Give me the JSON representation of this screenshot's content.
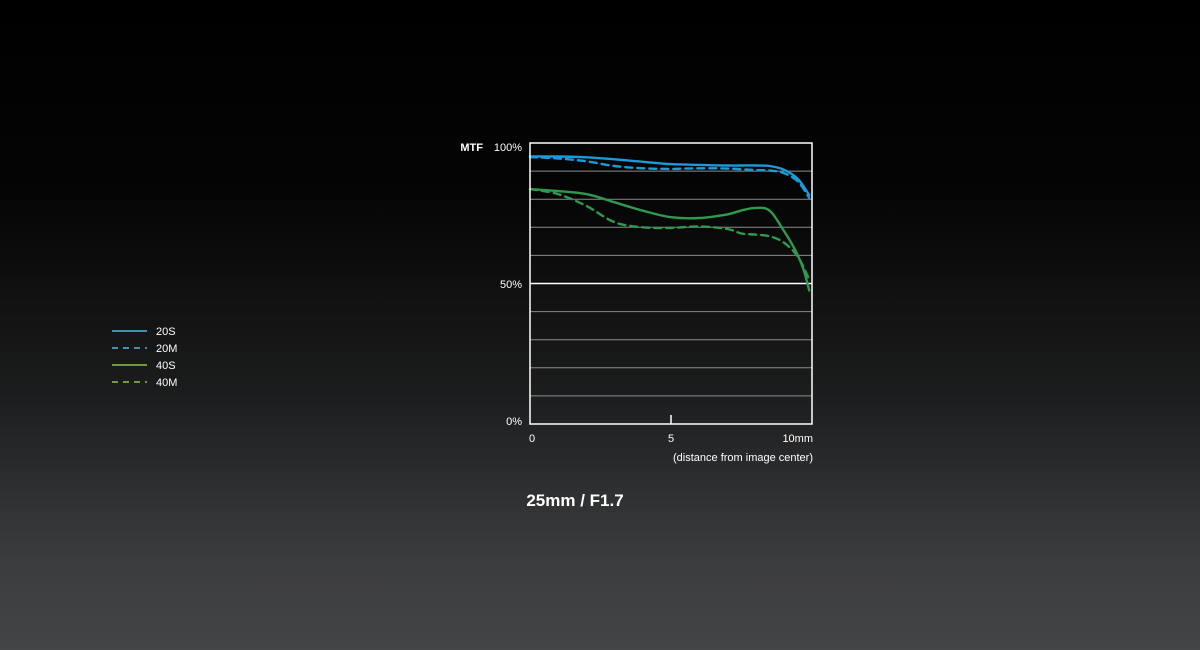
{
  "chart_data": {
    "type": "line",
    "ylabel": "MTF",
    "xlabel": "(distance from image center)",
    "y_ticks": [
      "0%",
      "50%",
      "100%"
    ],
    "x_ticks": [
      "0",
      "5",
      "10mm"
    ],
    "xlim": [
      0,
      10
    ],
    "ylim": [
      0,
      100
    ],
    "grid": true,
    "legend_position": "left",
    "caption": "25mm / F1.7",
    "colors": {
      "blue": "#1a9ad6",
      "green": "#2e9a4e",
      "legend_blue": "#5ab4e6",
      "legend_green": "#8dc63f"
    },
    "legend": [
      {
        "label": "20S",
        "style": "solid",
        "color": "#5ab4e6"
      },
      {
        "label": "20M",
        "style": "dashed",
        "color": "#5ab4e6"
      },
      {
        "label": "40S",
        "style": "solid",
        "color": "#8dc63f"
      },
      {
        "label": "40M",
        "style": "dashed",
        "color": "#8dc63f"
      }
    ],
    "series": [
      {
        "name": "20S",
        "color": "#1a9ad6",
        "dash": false,
        "points": [
          [
            0,
            95.2
          ],
          [
            1,
            95.2
          ],
          [
            2,
            94.9
          ],
          [
            3,
            94.2
          ],
          [
            4,
            93.3
          ],
          [
            5,
            92.5
          ],
          [
            6,
            92.2
          ],
          [
            7,
            92.0
          ],
          [
            7.5,
            92.0
          ],
          [
            8,
            92.0
          ],
          [
            8.5,
            91.8
          ],
          [
            9,
            90.5
          ],
          [
            9.5,
            87.2
          ],
          [
            9.9,
            81.5
          ]
        ]
      },
      {
        "name": "20M",
        "color": "#1a9ad6",
        "dash": true,
        "points": [
          [
            0,
            95.0
          ],
          [
            1,
            94.5
          ],
          [
            2,
            93.5
          ],
          [
            3,
            91.8
          ],
          [
            4,
            91.0
          ],
          [
            5,
            90.8
          ],
          [
            6,
            91.0
          ],
          [
            7,
            90.9
          ],
          [
            8,
            90.4
          ],
          [
            8.5,
            90.2
          ],
          [
            9,
            89.3
          ],
          [
            9.5,
            86.3
          ],
          [
            9.9,
            80.5
          ]
        ]
      },
      {
        "name": "40S",
        "color": "#2e9a4e",
        "dash": false,
        "points": [
          [
            0,
            83.6
          ],
          [
            1,
            82.9
          ],
          [
            2,
            81.8
          ],
          [
            3,
            78.9
          ],
          [
            4,
            75.9
          ],
          [
            5,
            73.6
          ],
          [
            6,
            73.3
          ],
          [
            7,
            74.6
          ],
          [
            7.5,
            76.0
          ],
          [
            8,
            76.9
          ],
          [
            8.5,
            75.9
          ],
          [
            9,
            68.8
          ],
          [
            9.4,
            62.0
          ],
          [
            9.7,
            55.0
          ],
          [
            9.9,
            47.5
          ]
        ]
      },
      {
        "name": "40M",
        "color": "#2e9a4e",
        "dash": true,
        "points": [
          [
            0,
            83.6
          ],
          [
            1,
            81.8
          ],
          [
            2,
            77.6
          ],
          [
            3,
            71.8
          ],
          [
            4,
            70.0
          ],
          [
            5,
            69.8
          ],
          [
            6,
            70.3
          ],
          [
            7,
            69.4
          ],
          [
            7.5,
            67.8
          ],
          [
            8,
            67.4
          ],
          [
            8.5,
            66.8
          ],
          [
            9,
            64.6
          ],
          [
            9.5,
            59.5
          ],
          [
            9.9,
            51.5
          ]
        ]
      }
    ]
  }
}
